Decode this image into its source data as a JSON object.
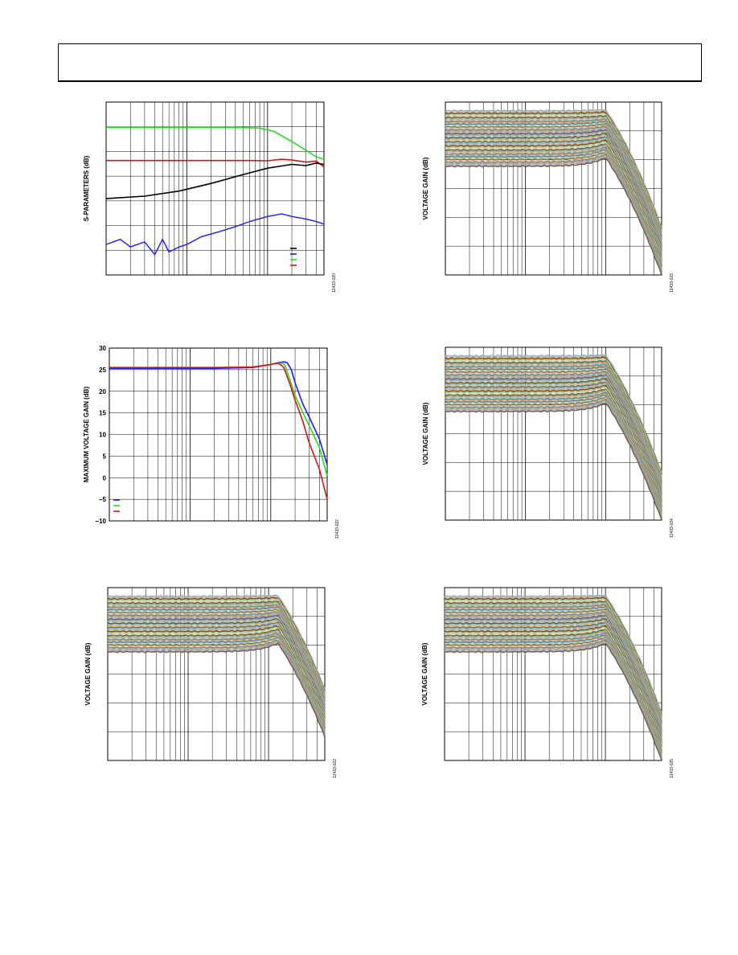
{
  "page": {
    "header_text": ""
  },
  "charts": [
    {
      "id": "sparams",
      "ylabel": "S-PARAMETERS (dB)",
      "figure_id": "12433-020",
      "legend_colors": [
        "#000000",
        "#1a1aff",
        "#22dd22",
        "#e01010"
      ]
    },
    {
      "id": "vgain-top-right",
      "ylabel": "VOLTAGE GAIN (dB)",
      "figure_id": "12433-023"
    },
    {
      "id": "max-vgain",
      "ylabel": "MAXIMUM VOLTAGE GAIN (dB)",
      "figure_id": "12433-022",
      "legend_colors": [
        "#1a1aff",
        "#22dd22",
        "#e01010"
      ]
    },
    {
      "id": "vgain-mid-right",
      "ylabel": "VOLTAGE GAIN (dB)",
      "figure_id": "12433-024"
    },
    {
      "id": "vgain-bottom-left",
      "ylabel": "VOLTAGE GAIN (dB)",
      "figure_id": "12433-022"
    },
    {
      "id": "vgain-bottom-right",
      "ylabel": "VOLTAGE GAIN (dB)",
      "figure_id": "12433-025"
    }
  ],
  "chart_data": [
    {
      "chart": "sparams",
      "type": "line",
      "x_scale": "log",
      "grid": true,
      "series": [
        {
          "color": "#22dd22",
          "x": [
            1,
            20,
            40,
            80,
            120,
            200,
            300,
            400,
            500
          ],
          "y": [
            -2,
            -2,
            -2,
            -2.2,
            -3.5,
            -7.5,
            -11,
            -13.5,
            -14.5
          ]
        },
        {
          "color": "#e01010",
          "x": [
            1,
            20,
            60,
            100,
            150,
            200,
            300,
            400,
            500
          ],
          "y": [
            -15,
            -15,
            -15,
            -15.1,
            -14.5,
            -14.8,
            -15.6,
            -15.2,
            -17.5
          ]
        },
        {
          "color": "#000000",
          "x": [
            1,
            3,
            8,
            20,
            50,
            100,
            200,
            300,
            400,
            500
          ],
          "y": [
            -30,
            -29,
            -27,
            -24,
            -20.5,
            -18,
            -16.5,
            -17,
            -16,
            -16.5
          ]
        },
        {
          "color": "#1a1aff",
          "x": [
            1,
            1.5,
            2,
            3,
            4,
            5,
            6,
            8,
            10,
            15,
            25,
            40,
            60,
            100,
            150,
            200,
            300,
            400,
            500
          ],
          "y": [
            -48,
            -46,
            -49,
            -47,
            -52,
            -46,
            -51,
            -49,
            -48,
            -45,
            -43,
            -41,
            -39,
            -37,
            -36,
            -37,
            -38,
            -39,
            -40
          ]
        }
      ]
    },
    {
      "chart": "max-vgain",
      "type": "line",
      "x_scale": "log",
      "ylim": [
        -10,
        30
      ],
      "yticks": [
        30,
        25,
        20,
        15,
        10,
        5,
        0,
        -5,
        -10
      ],
      "ytick_labels": [
        "30",
        "25",
        "20",
        "15",
        "10",
        "5",
        "0",
        "−5",
        "−10"
      ],
      "grid": true,
      "series": [
        {
          "color": "#1a1aff",
          "x": [
            1,
            20,
            60,
            100,
            130,
            150,
            160,
            180,
            200,
            250,
            300,
            400,
            500
          ],
          "y": [
            25.3,
            25.3,
            25.5,
            26.2,
            26.7,
            26.8,
            26.6,
            25,
            22,
            17,
            14,
            9,
            3
          ]
        },
        {
          "color": "#22dd22",
          "x": [
            1,
            20,
            60,
            100,
            130,
            140,
            150,
            170,
            200,
            250,
            300,
            400,
            500
          ],
          "y": [
            25.5,
            25.5,
            25.6,
            26.2,
            26.6,
            26.5,
            26,
            23,
            19,
            15,
            12,
            7,
            0.5
          ]
        },
        {
          "color": "#e01010",
          "x": [
            1,
            20,
            60,
            100,
            120,
            130,
            145,
            170,
            200,
            250,
            300,
            400,
            500
          ],
          "y": [
            25.5,
            25.5,
            25.6,
            26.2,
            26.5,
            26.3,
            25.5,
            22,
            18,
            13,
            8,
            2,
            -5
          ]
        }
      ]
    },
    {
      "chart": "vgain-top-right",
      "type": "line",
      "x_scale": "log",
      "grid": true,
      "curve_family": {
        "count": 42,
        "gain_top": 26.5,
        "gain_bottom": 4,
        "peak_x": 100,
        "ylim": [
          -10,
          30
        ]
      }
    },
    {
      "chart": "vgain-mid-right",
      "type": "line",
      "x_scale": "log",
      "grid": true,
      "curve_family": {
        "count": 42,
        "gain_top": 26.5,
        "gain_bottom": 4,
        "peak_x": 100,
        "ylim": [
          -10,
          30
        ]
      }
    },
    {
      "chart": "vgain-bottom-left",
      "type": "line",
      "x_scale": "log",
      "grid": true,
      "curve_family": {
        "count": 42,
        "gain_top": 26.5,
        "gain_bottom": 4,
        "peak_x": 130,
        "ylim": [
          -10,
          30
        ]
      }
    },
    {
      "chart": "vgain-bottom-right",
      "type": "line",
      "x_scale": "log",
      "grid": true,
      "curve_family": {
        "count": 42,
        "gain_top": 26.5,
        "gain_bottom": 4,
        "peak_x": 100,
        "ylim": [
          -10,
          30
        ]
      }
    }
  ],
  "family_palette": [
    "#7fb0d8",
    "#e8a860",
    "#5b4a3a",
    "#9fcf88",
    "#f0c8b0",
    "#3a6a4a",
    "#c89860",
    "#a0c0e0",
    "#6a8a5a",
    "#d8a080",
    "#4a7aa0",
    "#b8d8a0",
    "#8a6a4a",
    "#e0c0a0",
    "#5a8a9a",
    "#c0a070",
    "#a8a8c8",
    "#6a5a4a",
    "#78a8c8",
    "#d8b888",
    "#3e5e3e",
    "#9ab0b0",
    "#e8b878",
    "#507060"
  ]
}
